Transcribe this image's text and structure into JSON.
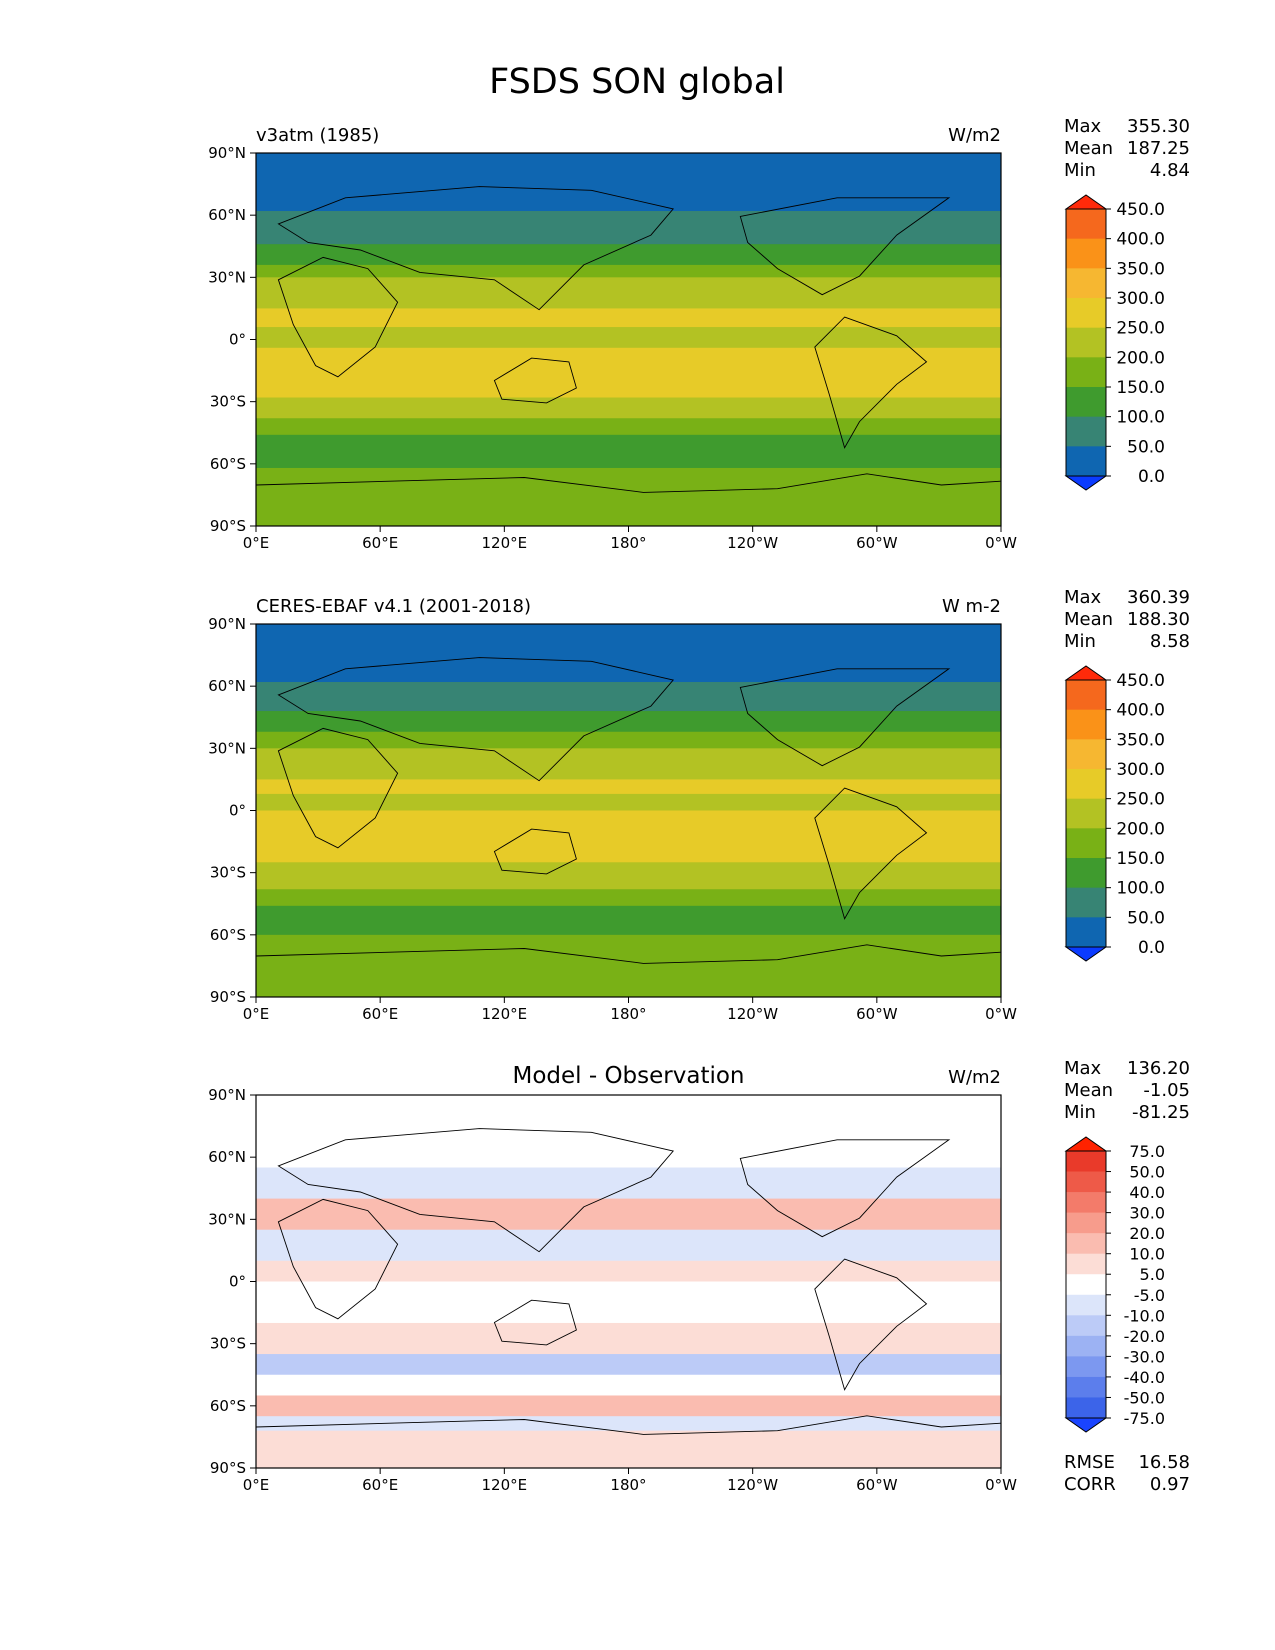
{
  "title": "FSDS SON global",
  "chart_data": [
    {
      "type": "heatmap",
      "panel": "model",
      "left_title": "v3atm (1985)",
      "center_title": "",
      "units": "W/m2",
      "stats": {
        "max_label": "Max",
        "max": "355.30",
        "mean_label": "Mean",
        "mean": "187.25",
        "min_label": "Min",
        "min": "4.84"
      },
      "x_ticks": [
        "0°E",
        "60°E",
        "120°E",
        "180°",
        "120°W",
        "60°W",
        "0°W"
      ],
      "y_ticks": [
        "90°N",
        "60°N",
        "30°N",
        "0°",
        "30°S",
        "60°S",
        "90°S"
      ],
      "colorbar": {
        "levels": [
          "450.0",
          "400.0",
          "350.0",
          "300.0",
          "250.0",
          "200.0",
          "150.0",
          "100.0",
          "50.0",
          "0.0"
        ],
        "colors": [
          "#ff2a0a",
          "#f5681d",
          "#fa9218",
          "#f6b731",
          "#e7cb28",
          "#b3c223",
          "#79b116",
          "#3f9b2e",
          "#378474",
          "#0f66b1",
          "#0b3bff"
        ]
      },
      "bands": [
        {
          "lat": [
            90,
            62
          ],
          "value": 25
        },
        {
          "lat": [
            62,
            46
          ],
          "value": 75
        },
        {
          "lat": [
            46,
            36
          ],
          "value": 125
        },
        {
          "lat": [
            36,
            30
          ],
          "value": 175
        },
        {
          "lat": [
            30,
            15
          ],
          "value": 225
        },
        {
          "lat": [
            15,
            6
          ],
          "value": 275
        },
        {
          "lat": [
            6,
            -4
          ],
          "value": 225
        },
        {
          "lat": [
            -4,
            -28
          ],
          "value": 275
        },
        {
          "lat": [
            -28,
            -38
          ],
          "value": 225
        },
        {
          "lat": [
            -38,
            -46
          ],
          "value": 175
        },
        {
          "lat": [
            -46,
            -62
          ],
          "value": 125
        },
        {
          "lat": [
            -62,
            -70
          ],
          "value": 175
        },
        {
          "lat": [
            -70,
            -90
          ],
          "value": 175
        }
      ]
    },
    {
      "type": "heatmap",
      "panel": "observation",
      "left_title": "CERES-EBAF v4.1 (2001-2018)",
      "center_title": "",
      "units": "W m-2",
      "stats": {
        "max_label": "Max",
        "max": "360.39",
        "mean_label": "Mean",
        "mean": "188.30",
        "min_label": "Min",
        "min": "8.58"
      },
      "x_ticks": [
        "0°E",
        "60°E",
        "120°E",
        "180°",
        "120°W",
        "60°W",
        "0°W"
      ],
      "y_ticks": [
        "90°N",
        "60°N",
        "30°N",
        "0°",
        "30°S",
        "60°S",
        "90°S"
      ],
      "colorbar": {
        "levels": [
          "450.0",
          "400.0",
          "350.0",
          "300.0",
          "250.0",
          "200.0",
          "150.0",
          "100.0",
          "50.0",
          "0.0"
        ],
        "colors": [
          "#ff2a0a",
          "#f5681d",
          "#fa9218",
          "#f6b731",
          "#e7cb28",
          "#b3c223",
          "#79b116",
          "#3f9b2e",
          "#378474",
          "#0f66b1",
          "#0b3bff"
        ]
      },
      "bands": [
        {
          "lat": [
            90,
            62
          ],
          "value": 25
        },
        {
          "lat": [
            62,
            48
          ],
          "value": 75
        },
        {
          "lat": [
            48,
            38
          ],
          "value": 125
        },
        {
          "lat": [
            38,
            30
          ],
          "value": 175
        },
        {
          "lat": [
            30,
            15
          ],
          "value": 225
        },
        {
          "lat": [
            15,
            8
          ],
          "value": 275
        },
        {
          "lat": [
            8,
            0
          ],
          "value": 225
        },
        {
          "lat": [
            0,
            -25
          ],
          "value": 275
        },
        {
          "lat": [
            -25,
            -38
          ],
          "value": 225
        },
        {
          "lat": [
            -38,
            -46
          ],
          "value": 175
        },
        {
          "lat": [
            -46,
            -60
          ],
          "value": 125
        },
        {
          "lat": [
            -60,
            -70
          ],
          "value": 175
        },
        {
          "lat": [
            -70,
            -90
          ],
          "value": 175
        }
      ]
    },
    {
      "type": "heatmap",
      "panel": "difference",
      "left_title": "",
      "center_title": "Model - Observation",
      "units": "W/m2",
      "stats": {
        "max_label": "Max",
        "max": "136.20",
        "mean_label": "Mean",
        "mean": "-1.05",
        "min_label": "Min",
        "min": "-81.25"
      },
      "extra_stats": {
        "rmse_label": "RMSE",
        "rmse": "16.58",
        "corr_label": "CORR",
        "corr": "0.97"
      },
      "x_ticks": [
        "0°E",
        "60°E",
        "120°E",
        "180°",
        "120°W",
        "60°W",
        "0°W"
      ],
      "y_ticks": [
        "90°N",
        "60°N",
        "30°N",
        "0°",
        "30°S",
        "60°S",
        "90°S"
      ],
      "colorbar": {
        "levels": [
          "75.0",
          "50.0",
          "40.0",
          "30.0",
          "20.0",
          "10.0",
          "5.0",
          "-5.0",
          "-10.0",
          "-20.0",
          "-30.0",
          "-40.0",
          "-50.0",
          "-75.0"
        ],
        "colors": [
          "#ff2200",
          "#e93a2a",
          "#ee5a48",
          "#f37b6a",
          "#f79c8c",
          "#fabcb0",
          "#fcddd6",
          "#ffffff",
          "#dce5fa",
          "#bccbf7",
          "#9cb2f3",
          "#7c98f0",
          "#5c7eec",
          "#3c64e9",
          "#1a44ff"
        ]
      },
      "bands": [
        {
          "lat": [
            90,
            55
          ],
          "value": 0
        },
        {
          "lat": [
            55,
            40
          ],
          "value": -8
        },
        {
          "lat": [
            40,
            25
          ],
          "value": 12
        },
        {
          "lat": [
            25,
            10
          ],
          "value": -6
        },
        {
          "lat": [
            10,
            0
          ],
          "value": 8
        },
        {
          "lat": [
            0,
            -20
          ],
          "value": -4
        },
        {
          "lat": [
            -20,
            -35
          ],
          "value": 6
        },
        {
          "lat": [
            -35,
            -45
          ],
          "value": -18
        },
        {
          "lat": [
            -45,
            -55
          ],
          "value": 3
        },
        {
          "lat": [
            -55,
            -65
          ],
          "value": 12
        },
        {
          "lat": [
            -65,
            -72
          ],
          "value": -8
        },
        {
          "lat": [
            -72,
            -90
          ],
          "value": 6
        }
      ]
    }
  ]
}
